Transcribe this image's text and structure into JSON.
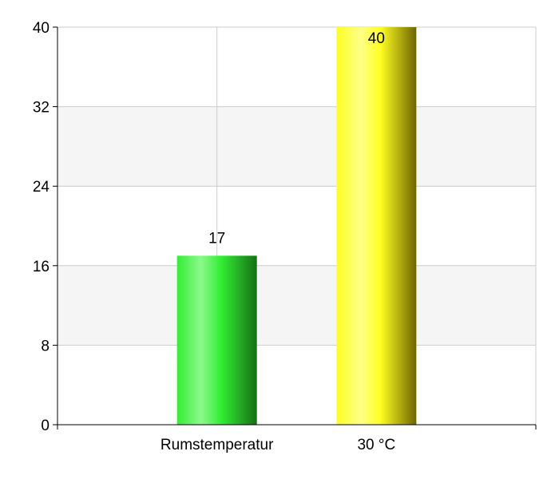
{
  "chart_data": {
    "type": "bar",
    "categories": [
      "Rumstemperatur",
      "30 °C"
    ],
    "values": [
      17,
      40
    ],
    "data_labels": [
      "17",
      "40"
    ],
    "y_ticks": [
      "0",
      "8",
      "16",
      "24",
      "32",
      "40"
    ],
    "ylim": [
      0,
      40
    ],
    "grid": true,
    "alternating_band_color": "#f5f5f5",
    "grid_color": "#cccccc",
    "bar_colors": [
      {
        "light": "#8cf98c",
        "base": "#33ee33",
        "dark": "#147014"
      },
      {
        "light": "#ffff88",
        "base": "#ffff22",
        "dark": "#6e6400"
      }
    ]
  }
}
